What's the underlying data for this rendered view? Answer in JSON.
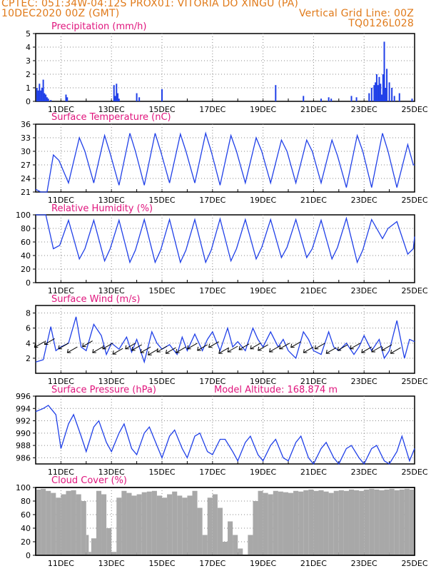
{
  "header": {
    "line1_left": "CPTEC:   051:34W-04:12S   PROX01: VITORIA DO XINGU (PA)",
    "line2_left": "10DEC2020 00Z (GMT)",
    "line2_right": "Vertical Grid Line: 00Z",
    "line3_right": "TQ0126L028"
  },
  "colors": {
    "header": "#e07a1a",
    "panel_title": "#e0157d",
    "series": "#2040e8",
    "cloud": "#a8a8a8",
    "wind_barb": "#000000",
    "grid": "#888888"
  },
  "chart_data": [
    {
      "type": "bar",
      "title": "Precipitation (mm/h)",
      "x_range": [
        0,
        15
      ],
      "x_ticks": [
        "11DEC",
        "13DEC",
        "15DEC",
        "17DEC",
        "19DEC",
        "21DEC",
        "23DEC",
        "25DEC"
      ],
      "ylim": [
        0,
        5
      ],
      "y_ticks": [
        0,
        1,
        2,
        3,
        4,
        5
      ],
      "x": [
        0.05,
        0.1,
        0.15,
        0.2,
        0.25,
        0.3,
        0.35,
        0.4,
        0.45,
        0.5,
        0.6,
        1.2,
        1.25,
        3.1,
        3.15,
        3.2,
        3.25,
        3.3,
        4.0,
        4.1,
        5.0,
        9.5,
        10.6,
        11.3,
        11.6,
        11.7,
        12.5,
        12.7,
        13.2,
        13.3,
        13.4,
        13.45,
        13.5,
        13.55,
        13.6,
        13.65,
        13.7,
        13.75,
        13.8,
        13.85,
        13.9,
        14.0,
        14.1,
        14.2,
        14.4,
        14.9
      ],
      "values": [
        1.0,
        0.8,
        1.3,
        0.8,
        1.0,
        1.6,
        0.6,
        0.5,
        0.3,
        0.2,
        0.1,
        0.5,
        0.3,
        1.2,
        0.4,
        1.3,
        0.6,
        0.2,
        0.6,
        0.3,
        0.9,
        1.2,
        0.4,
        0.2,
        0.3,
        0.2,
        0.4,
        0.3,
        0.6,
        1.0,
        1.2,
        1.4,
        2.0,
        1.2,
        1.8,
        1.3,
        0.5,
        2.0,
        4.4,
        1.0,
        2.4,
        1.4,
        1.0,
        0.4,
        0.6,
        0.2
      ]
    },
    {
      "type": "line",
      "title": "Surface Temperature (nC)",
      "x_range": [
        0,
        15
      ],
      "x_ticks": [
        "11DEC",
        "13DEC",
        "15DEC",
        "17DEC",
        "19DEC",
        "21DEC",
        "23DEC",
        "25DEC"
      ],
      "ylim": [
        21,
        36
      ],
      "y_ticks": [
        21,
        24,
        27,
        30,
        33,
        36
      ],
      "x": [
        0,
        0.2,
        0.45,
        0.7,
        0.92,
        1.3,
        1.73,
        1.95,
        2.3,
        2.73,
        2.95,
        3.3,
        3.73,
        3.95,
        4.3,
        4.73,
        4.95,
        5.3,
        5.73,
        5.95,
        6.3,
        6.73,
        6.95,
        7.3,
        7.73,
        7.95,
        8.3,
        8.73,
        8.95,
        9.3,
        9.73,
        9.95,
        10.3,
        10.73,
        10.95,
        11.3,
        11.73,
        11.95,
        12.3,
        12.73,
        12.95,
        13.3,
        13.73,
        13.95,
        14.3,
        14.73,
        14.95,
        15.0
      ],
      "values": [
        21.6,
        21.0,
        20.6,
        29.2,
        28.0,
        23.0,
        33.0,
        30.0,
        23.0,
        33.5,
        29.5,
        22.5,
        34.0,
        30.0,
        22.5,
        34.0,
        30.0,
        23.0,
        33.8,
        30.0,
        23.0,
        34.0,
        30.0,
        22.5,
        33.5,
        30.0,
        23.0,
        33.0,
        30.0,
        23.0,
        32.5,
        30.0,
        23.0,
        32.5,
        30.0,
        23.0,
        32.5,
        29.0,
        22.0,
        33.5,
        30.0,
        22.0,
        34.0,
        30.0,
        22.0,
        31.5,
        27.0,
        27.0
      ]
    },
    {
      "type": "line",
      "title": "Relative Humidity (%)",
      "x_range": [
        0,
        15
      ],
      "x_ticks": [
        "11DEC",
        "13DEC",
        "15DEC",
        "17DEC",
        "19DEC",
        "21DEC",
        "23DEC",
        "25DEC"
      ],
      "ylim": [
        0,
        100
      ],
      "y_ticks": [
        0,
        20,
        40,
        60,
        80,
        100
      ],
      "x": [
        0,
        0.4,
        0.7,
        0.95,
        1.3,
        1.73,
        1.95,
        2.3,
        2.73,
        2.95,
        3.3,
        3.73,
        3.95,
        4.3,
        4.73,
        4.95,
        5.3,
        5.73,
        5.95,
        6.3,
        6.73,
        6.95,
        7.3,
        7.73,
        7.95,
        8.3,
        8.73,
        8.95,
        9.3,
        9.73,
        9.95,
        10.3,
        10.73,
        10.95,
        11.3,
        11.73,
        11.95,
        12.3,
        12.73,
        12.95,
        13.3,
        13.73,
        13.95,
        14.3,
        14.73,
        14.95,
        15.0
      ],
      "values": [
        100,
        100,
        50,
        55,
        92,
        35,
        50,
        92,
        32,
        50,
        92,
        30,
        48,
        93,
        30,
        48,
        93,
        30,
        48,
        93,
        30,
        48,
        94,
        32,
        50,
        93,
        35,
        52,
        93,
        37,
        52,
        93,
        37,
        50,
        92,
        35,
        52,
        95,
        30,
        48,
        93,
        65,
        80,
        90,
        42,
        50,
        68
      ]
    },
    {
      "type": "line",
      "title": "Surface Wind (m/s)",
      "x_range": [
        0,
        15
      ],
      "x_ticks": [
        "11DEC",
        "13DEC",
        "15DEC",
        "17DEC",
        "19DEC",
        "21DEC",
        "23DEC",
        "25DEC"
      ],
      "ylim": [
        0,
        9
      ],
      "y_ticks": [
        2,
        4,
        6,
        8
      ],
      "x": [
        0,
        0.3,
        0.6,
        0.8,
        1.0,
        1.3,
        1.6,
        1.8,
        2.0,
        2.3,
        2.6,
        2.8,
        3.0,
        3.3,
        3.6,
        3.8,
        4.0,
        4.3,
        4.6,
        4.8,
        5.0,
        5.3,
        5.6,
        5.8,
        6.0,
        6.3,
        6.6,
        6.8,
        7.0,
        7.3,
        7.6,
        7.8,
        8.0,
        8.3,
        8.6,
        8.8,
        9.0,
        9.3,
        9.6,
        9.8,
        10.0,
        10.3,
        10.6,
        10.8,
        11.0,
        11.3,
        11.6,
        11.8,
        12.0,
        12.3,
        12.6,
        12.8,
        13.0,
        13.3,
        13.6,
        13.8,
        14.0,
        14.3,
        14.6,
        14.8,
        15.0
      ],
      "values": [
        1.5,
        1.8,
        6.2,
        3.0,
        3.5,
        4.0,
        7.5,
        3.5,
        3.0,
        6.5,
        5.0,
        2.5,
        4.0,
        3.2,
        4.8,
        2.8,
        4.5,
        1.5,
        5.5,
        4.0,
        3.2,
        3.8,
        2.5,
        4.8,
        3.0,
        5.2,
        3.0,
        4.5,
        5.5,
        3.0,
        6.0,
        3.5,
        4.2,
        3.0,
        6.0,
        4.5,
        3.5,
        5.5,
        3.5,
        4.5,
        3.0,
        2.0,
        5.5,
        4.5,
        3.0,
        2.5,
        5.5,
        3.5,
        3.0,
        4.0,
        2.5,
        3.5,
        5.0,
        3.0,
        4.5,
        2.0,
        3.0,
        7.0,
        2.0,
        4.5,
        4.2
      ]
    },
    {
      "type": "line",
      "title": "Surface Pressure (hPa)",
      "annotation": "Model Altitude: 168.874 m",
      "x_range": [
        0,
        15
      ],
      "x_ticks": [
        "11DEC",
        "13DEC",
        "15DEC",
        "17DEC",
        "19DEC",
        "21DEC",
        "23DEC",
        "25DEC"
      ],
      "ylim": [
        985,
        996
      ],
      "y_ticks": [
        986,
        988,
        990,
        992,
        994,
        996
      ],
      "x": [
        0,
        0.3,
        0.5,
        0.8,
        1.0,
        1.3,
        1.5,
        1.8,
        2.0,
        2.3,
        2.5,
        2.8,
        3.0,
        3.3,
        3.5,
        3.8,
        4.0,
        4.3,
        4.5,
        4.8,
        5.0,
        5.3,
        5.5,
        5.8,
        6.0,
        6.3,
        6.5,
        6.8,
        7.0,
        7.3,
        7.5,
        7.8,
        8.0,
        8.3,
        8.5,
        8.8,
        9.0,
        9.3,
        9.5,
        9.8,
        10.0,
        10.3,
        10.5,
        10.8,
        11.0,
        11.3,
        11.5,
        11.8,
        12.0,
        12.3,
        12.5,
        12.8,
        13.0,
        13.3,
        13.5,
        13.8,
        14.0,
        14.3,
        14.5,
        14.8,
        15.0
      ],
      "values": [
        993.5,
        994.0,
        994.5,
        993.0,
        987.5,
        991.5,
        993.0,
        989.5,
        987.0,
        991.0,
        992.0,
        988.5,
        987.0,
        990.0,
        991.5,
        987.5,
        986.5,
        990.0,
        991.0,
        988.0,
        986.0,
        989.5,
        990.5,
        987.5,
        986.0,
        989.5,
        990.0,
        987.0,
        986.5,
        989.0,
        989.0,
        987.0,
        985.5,
        988.5,
        989.5,
        986.5,
        985.5,
        988.0,
        989.0,
        986.0,
        985.5,
        988.5,
        989.5,
        986.0,
        985.0,
        987.5,
        988.5,
        986.0,
        985.0,
        987.5,
        988.0,
        986.0,
        984.5,
        987.5,
        988.0,
        985.5,
        984.5,
        987.0,
        989.5,
        985.5,
        987.5
      ]
    },
    {
      "type": "area",
      "title": "Cloud Cover (%)",
      "x_range": [
        0,
        15
      ],
      "x_ticks": [
        "11DEC",
        "13DEC",
        "15DEC",
        "17DEC",
        "19DEC",
        "21DEC",
        "23DEC",
        "25DEC"
      ],
      "ylim": [
        0,
        100
      ],
      "y_ticks": [
        0,
        20,
        40,
        60,
        80,
        100
      ],
      "x": [
        0,
        0.2,
        0.4,
        0.6,
        0.8,
        1.0,
        1.2,
        1.4,
        1.6,
        1.8,
        2.0,
        2.1,
        2.2,
        2.4,
        2.6,
        2.8,
        3.0,
        3.2,
        3.4,
        3.6,
        3.8,
        4.0,
        4.2,
        4.4,
        4.6,
        4.8,
        5.0,
        5.2,
        5.4,
        5.6,
        5.8,
        6.0,
        6.2,
        6.4,
        6.6,
        6.8,
        7.0,
        7.2,
        7.4,
        7.6,
        7.8,
        8.0,
        8.2,
        8.4,
        8.6,
        8.8,
        9.0,
        9.2,
        9.4,
        9.6,
        9.8,
        10.0,
        10.2,
        10.4,
        10.6,
        10.8,
        11.0,
        11.2,
        11.4,
        11.6,
        11.8,
        12.0,
        12.2,
        12.4,
        12.6,
        12.8,
        13.0,
        13.2,
        13.4,
        13.6,
        13.8,
        14.0,
        14.2,
        14.4,
        14.6,
        14.8,
        15.0
      ],
      "values": [
        97,
        98,
        95,
        92,
        85,
        90,
        95,
        96,
        90,
        80,
        30,
        5,
        25,
        95,
        90,
        40,
        5,
        85,
        95,
        92,
        88,
        90,
        93,
        94,
        95,
        88,
        85,
        90,
        94,
        88,
        85,
        88,
        95,
        70,
        30,
        85,
        90,
        70,
        20,
        50,
        30,
        10,
        0,
        30,
        80,
        95,
        92,
        90,
        95,
        94,
        93,
        92,
        95,
        94,
        96,
        97,
        95,
        96,
        94,
        92,
        95,
        96,
        95,
        97,
        96,
        95,
        97,
        98,
        97,
        96,
        97,
        98,
        96,
        97,
        98,
        97,
        98
      ]
    }
  ],
  "wind_arrows": {
    "x": [
      0.35,
      0.75,
      1.3,
      1.65,
      2.25,
      2.65,
      3.05,
      3.45,
      3.95,
      4.2,
      4.55,
      4.85,
      5.2,
      5.55,
      5.95,
      6.4,
      6.8,
      7.25,
      7.65,
      8.0,
      8.45,
      8.9,
      9.2,
      9.65,
      10.05,
      10.5,
      11.0,
      11.45,
      11.9,
      12.35,
      12.85,
      13.3,
      13.7,
      14.1,
      14.45
    ],
    "values": [
      4.2,
      4.6,
      4.0,
      3.5,
      4.3,
      3.5,
      4.0,
      3.3,
      4.0,
      3.8,
      3.5,
      3.2,
      3.6,
      3.4,
      3.5,
      4.0,
      3.8,
      4.2,
      3.4,
      3.6,
      3.9,
      4.0,
      3.8,
      3.6,
      4.0,
      4.2,
      3.5,
      4.0,
      3.4,
      3.8,
      4.0,
      3.5,
      3.6,
      3.8,
      3.4
    ]
  }
}
